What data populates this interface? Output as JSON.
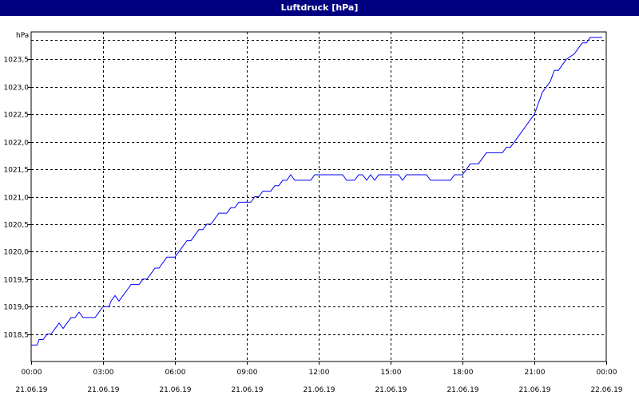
{
  "window": {
    "title": "Luftdruck [hPa]"
  },
  "chart_data": {
    "type": "line",
    "title": "Luftdruck [hPa]",
    "ylabel": "hPa",
    "xlabel": "",
    "xlim": [
      "21.06.19 00:00",
      "22.06.19 00:00"
    ],
    "ylim": [
      1018.0,
      1024.0
    ],
    "grid": true,
    "yticks": [
      {
        "value": 1018.5,
        "label": "1018,5"
      },
      {
        "value": 1019.0,
        "label": "1019,0"
      },
      {
        "value": 1019.5,
        "label": "1019,5"
      },
      {
        "value": 1020.0,
        "label": "1020,0"
      },
      {
        "value": 1020.5,
        "label": "1020,5"
      },
      {
        "value": 1021.0,
        "label": "1021,0"
      },
      {
        "value": 1021.5,
        "label": "1021,5"
      },
      {
        "value": 1022.0,
        "label": "1022,0"
      },
      {
        "value": 1022.5,
        "label": "1022,5"
      },
      {
        "value": 1023.0,
        "label": "1023,0"
      },
      {
        "value": 1023.5,
        "label": "1023,5"
      }
    ],
    "xticks": [
      {
        "value": "21.06.19 00:00",
        "time": "00:00",
        "date": "21.06.19"
      },
      {
        "value": "21.06.19 03:00",
        "time": "03:00",
        "date": "21.06.19"
      },
      {
        "value": "21.06.19 06:00",
        "time": "06:00",
        "date": "21.06.19"
      },
      {
        "value": "21.06.19 09:00",
        "time": "09:00",
        "date": "21.06.19"
      },
      {
        "value": "21.06.19 12:00",
        "time": "12:00",
        "date": "21.06.19"
      },
      {
        "value": "21.06.19 15:00",
        "time": "15:00",
        "date": "21.06.19"
      },
      {
        "value": "21.06.19 18:00",
        "time": "18:00",
        "date": "21.06.19"
      },
      {
        "value": "21.06.19 21:00",
        "time": "21:00",
        "date": "21.06.19"
      },
      {
        "value": "22.06.19 00:00",
        "time": "00:00",
        "date": "22.06.19"
      }
    ],
    "series": [
      {
        "color": "#0000ff",
        "points": [
          [
            "21.06.19 00:00",
            1018.3
          ],
          [
            "21.06.19 00:15",
            1018.3
          ],
          [
            "21.06.19 00:20",
            1018.4
          ],
          [
            "21.06.19 00:30",
            1018.4
          ],
          [
            "21.06.19 00:40",
            1018.5
          ],
          [
            "21.06.19 00:50",
            1018.5
          ],
          [
            "21.06.19 01:00",
            1018.6
          ],
          [
            "21.06.19 01:10",
            1018.7
          ],
          [
            "21.06.19 01:20",
            1018.6
          ],
          [
            "21.06.19 01:30",
            1018.7
          ],
          [
            "21.06.19 01:40",
            1018.8
          ],
          [
            "21.06.19 01:50",
            1018.8
          ],
          [
            "21.06.19 02:00",
            1018.9
          ],
          [
            "21.06.19 02:10",
            1018.8
          ],
          [
            "21.06.19 02:40",
            1018.8
          ],
          [
            "21.06.19 02:50",
            1018.9
          ],
          [
            "21.06.19 03:00",
            1019.0
          ],
          [
            "21.06.19 03:15",
            1019.0
          ],
          [
            "21.06.19 03:20",
            1019.1
          ],
          [
            "21.06.19 03:30",
            1019.2
          ],
          [
            "21.06.19 03:40",
            1019.1
          ],
          [
            "21.06.19 03:50",
            1019.2
          ],
          [
            "21.06.19 04:00",
            1019.3
          ],
          [
            "21.06.19 04:10",
            1019.4
          ],
          [
            "21.06.19 04:30",
            1019.4
          ],
          [
            "21.06.19 04:40",
            1019.5
          ],
          [
            "21.06.19 04:50",
            1019.5
          ],
          [
            "21.06.19 05:00",
            1019.6
          ],
          [
            "21.06.19 05:10",
            1019.7
          ],
          [
            "21.06.19 05:20",
            1019.7
          ],
          [
            "21.06.19 05:30",
            1019.8
          ],
          [
            "21.06.19 05:40",
            1019.9
          ],
          [
            "21.06.19 06:00",
            1019.9
          ],
          [
            "21.06.19 06:10",
            1020.0
          ],
          [
            "21.06.19 06:20",
            1020.1
          ],
          [
            "21.06.19 06:30",
            1020.2
          ],
          [
            "21.06.19 06:40",
            1020.2
          ],
          [
            "21.06.19 06:50",
            1020.3
          ],
          [
            "21.06.19 07:00",
            1020.4
          ],
          [
            "21.06.19 07:10",
            1020.4
          ],
          [
            "21.06.19 07:20",
            1020.5
          ],
          [
            "21.06.19 07:30",
            1020.5
          ],
          [
            "21.06.19 07:40",
            1020.6
          ],
          [
            "21.06.19 07:50",
            1020.7
          ],
          [
            "21.06.19 08:10",
            1020.7
          ],
          [
            "21.06.19 08:20",
            1020.8
          ],
          [
            "21.06.19 08:30",
            1020.8
          ],
          [
            "21.06.19 08:40",
            1020.9
          ],
          [
            "21.06.19 09:10",
            1020.9
          ],
          [
            "21.06.19 09:20",
            1021.0
          ],
          [
            "21.06.19 09:30",
            1021.0
          ],
          [
            "21.06.19 09:40",
            1021.1
          ],
          [
            "21.06.19 10:00",
            1021.1
          ],
          [
            "21.06.19 10:10",
            1021.2
          ],
          [
            "21.06.19 10:20",
            1021.2
          ],
          [
            "21.06.19 10:30",
            1021.3
          ],
          [
            "21.06.19 10:40",
            1021.3
          ],
          [
            "21.06.19 10:50",
            1021.4
          ],
          [
            "21.06.19 11:00",
            1021.3
          ],
          [
            "21.06.19 11:40",
            1021.3
          ],
          [
            "21.06.19 11:50",
            1021.4
          ],
          [
            "21.06.19 13:00",
            1021.4
          ],
          [
            "21.06.19 13:10",
            1021.3
          ],
          [
            "21.06.19 13:30",
            1021.3
          ],
          [
            "21.06.19 13:40",
            1021.4
          ],
          [
            "21.06.19 13:50",
            1021.4
          ],
          [
            "21.06.19 14:00",
            1021.3
          ],
          [
            "21.06.19 14:10",
            1021.4
          ],
          [
            "21.06.19 14:20",
            1021.3
          ],
          [
            "21.06.19 14:30",
            1021.4
          ],
          [
            "21.06.19 15:20",
            1021.4
          ],
          [
            "21.06.19 15:30",
            1021.3
          ],
          [
            "21.06.19 15:40",
            1021.4
          ],
          [
            "21.06.19 16:30",
            1021.4
          ],
          [
            "21.06.19 16:40",
            1021.3
          ],
          [
            "21.06.19 17:30",
            1021.3
          ],
          [
            "21.06.19 17:40",
            1021.4
          ],
          [
            "21.06.19 18:00",
            1021.4
          ],
          [
            "21.06.19 18:10",
            1021.5
          ],
          [
            "21.06.19 18:20",
            1021.6
          ],
          [
            "21.06.19 18:40",
            1021.6
          ],
          [
            "21.06.19 18:50",
            1021.7
          ],
          [
            "21.06.19 19:00",
            1021.8
          ],
          [
            "21.06.19 19:40",
            1021.8
          ],
          [
            "21.06.19 19:50",
            1021.9
          ],
          [
            "21.06.19 20:00",
            1021.9
          ],
          [
            "21.06.19 20:10",
            1022.0
          ],
          [
            "21.06.19 20:20",
            1022.1
          ],
          [
            "21.06.19 20:30",
            1022.2
          ],
          [
            "21.06.19 20:40",
            1022.3
          ],
          [
            "21.06.19 20:50",
            1022.4
          ],
          [
            "21.06.19 21:00",
            1022.5
          ],
          [
            "21.06.19 21:10",
            1022.7
          ],
          [
            "21.06.19 21:20",
            1022.9
          ],
          [
            "21.06.19 21:30",
            1023.0
          ],
          [
            "21.06.19 21:40",
            1023.1
          ],
          [
            "21.06.19 21:50",
            1023.3
          ],
          [
            "21.06.19 22:00",
            1023.3
          ],
          [
            "21.06.19 22:10",
            1023.4
          ],
          [
            "21.06.19 22:20",
            1023.5
          ],
          [
            "21.06.19 22:40",
            1023.6
          ],
          [
            "21.06.19 22:50",
            1023.7
          ],
          [
            "21.06.19 23:00",
            1023.8
          ],
          [
            "21.06.19 23:10",
            1023.8
          ],
          [
            "21.06.19 23:20",
            1023.9
          ],
          [
            "21.06.19 23:50",
            1023.9
          ]
        ]
      }
    ]
  }
}
